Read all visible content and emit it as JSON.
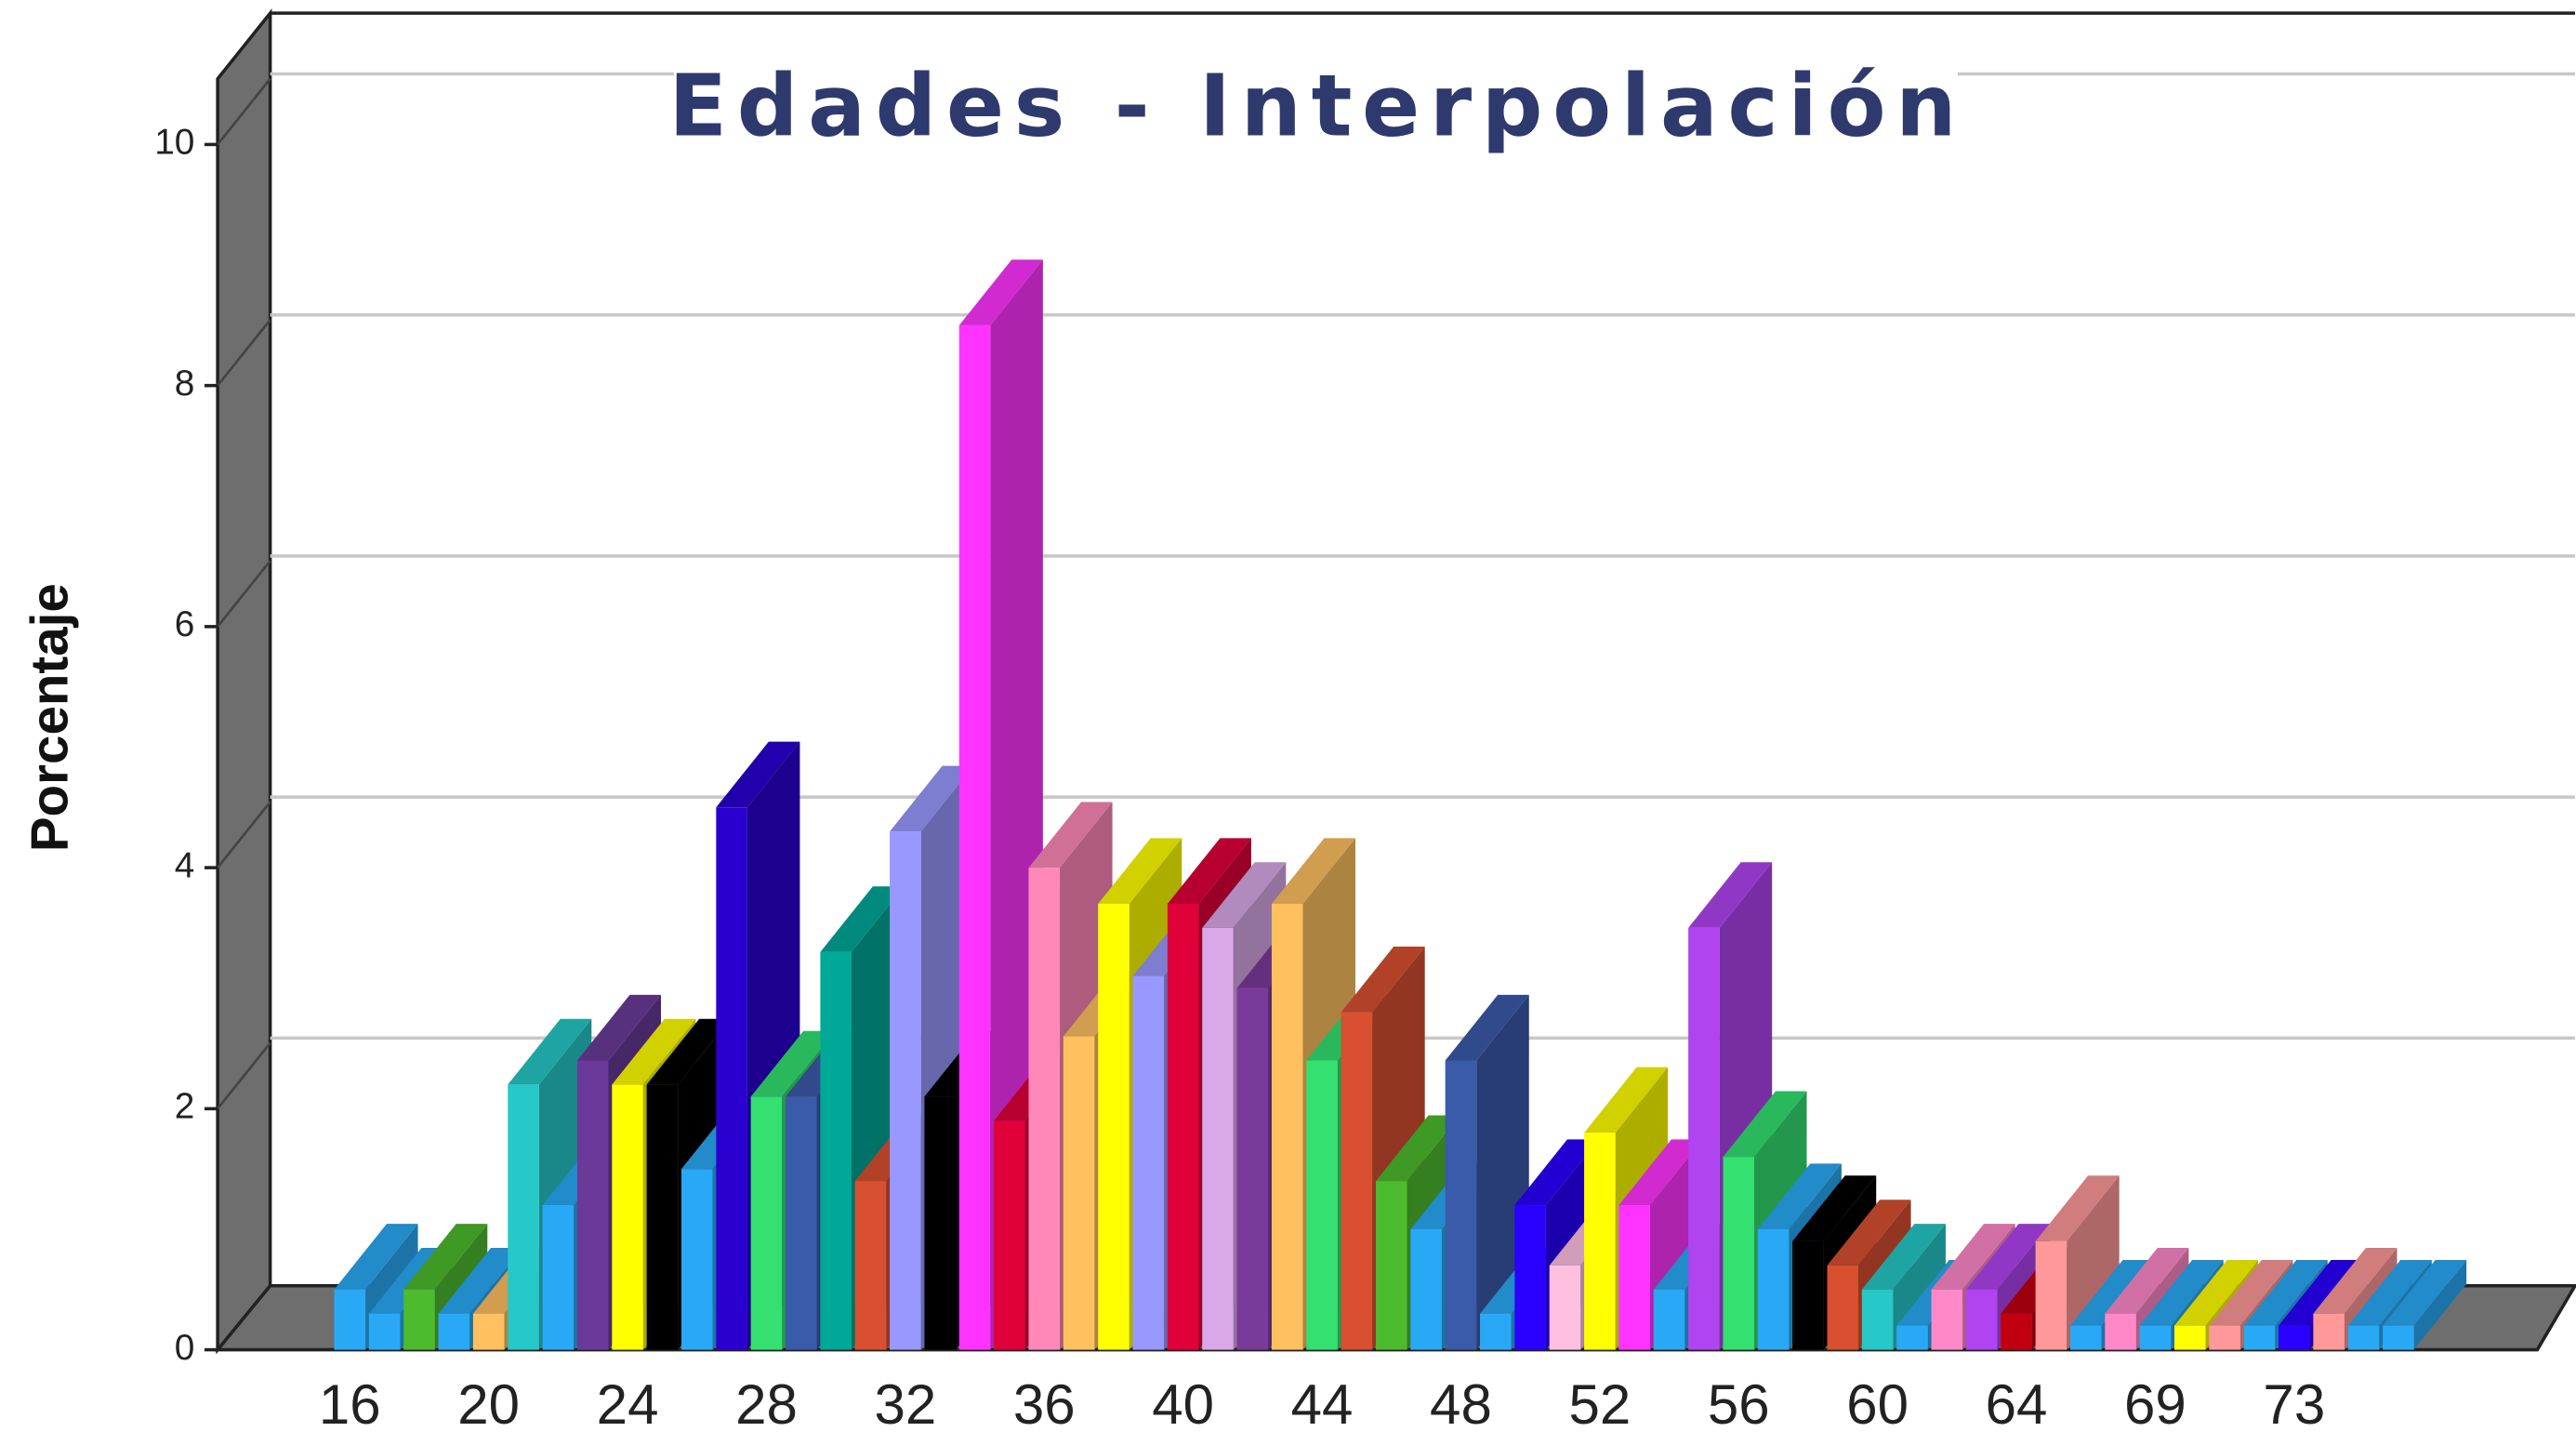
{
  "chart_data": {
    "type": "bar3d",
    "title": "Edades - Interpolación",
    "ylabel": "Porcentaje",
    "categories": [
      "16",
      null,
      null,
      null,
      "20",
      null,
      null,
      null,
      "24",
      null,
      null,
      null,
      "28",
      null,
      null,
      null,
      "32",
      null,
      null,
      null,
      "36",
      null,
      null,
      null,
      "40",
      null,
      null,
      null,
      "44",
      null,
      null,
      null,
      "48",
      null,
      null,
      null,
      "52",
      null,
      null,
      null,
      "56",
      null,
      null,
      null,
      "60",
      null,
      null,
      null,
      "64",
      null,
      null,
      null,
      "69",
      null,
      null,
      null,
      "73",
      null,
      null,
      null
    ],
    "values": [
      0.5,
      0.3,
      0.5,
      0.3,
      0.3,
      2.2,
      1.2,
      2.4,
      2.2,
      2.2,
      1.5,
      4.5,
      2.1,
      2.1,
      3.3,
      1.4,
      4.3,
      2.1,
      8.5,
      1.9,
      4.0,
      2.6,
      3.7,
      3.1,
      3.7,
      3.5,
      3.0,
      3.7,
      2.4,
      2.8,
      1.4,
      1.0,
      2.4,
      0.3,
      1.2,
      0.7,
      1.8,
      1.2,
      0.5,
      3.5,
      1.6,
      1.0,
      0.9,
      0.7,
      0.5,
      0.2,
      0.5,
      0.5,
      0.3,
      0.9,
      0.2,
      0.3,
      0.2,
      0.2,
      0.2,
      0.2,
      0.2,
      0.3,
      0.2,
      0.2
    ],
    "colors": [
      "#29a9f5",
      "#29a9f5",
      "#4cbb2d",
      "#29a9f5",
      "#ffc060",
      "#26c8c8",
      "#29a9f5",
      "#6a3a9a",
      "#ffff00",
      "#000000",
      "#29a9f5",
      "#2a00d0",
      "#33e070",
      "#3a5aaa",
      "#00a898",
      "#d85030",
      "#9898ff",
      "#000000",
      "#ff33ff",
      "#e0003a",
      "#ff88b8",
      "#ffc060",
      "#ffff00",
      "#9898ff",
      "#e0003a",
      "#d8a8e8",
      "#7a3a9a",
      "#ffc060",
      "#33e070",
      "#d85030",
      "#4cbb2d",
      "#29a9f5",
      "#3a5aaa",
      "#29a9f5",
      "#2a00ff",
      "#ffc0e0",
      "#ffff00",
      "#ff33ff",
      "#29a9f5",
      "#b044f0",
      "#33e070",
      "#29a9f5",
      "#000000",
      "#d85030",
      "#26c8c8",
      "#29a9f5",
      "#ff88c8",
      "#b044f0",
      "#c00010",
      "#ff9898",
      "#29a9f5",
      "#ff88c8",
      "#29a9f5",
      "#ffff00",
      "#ff9898",
      "#29a9f5",
      "#2a00ff",
      "#ff9898",
      "#29a9f5",
      "#29a9f5"
    ],
    "ylim": [
      0,
      10
    ],
    "yticks": [
      0,
      2,
      4,
      6,
      8,
      10
    ],
    "grid": true
  }
}
